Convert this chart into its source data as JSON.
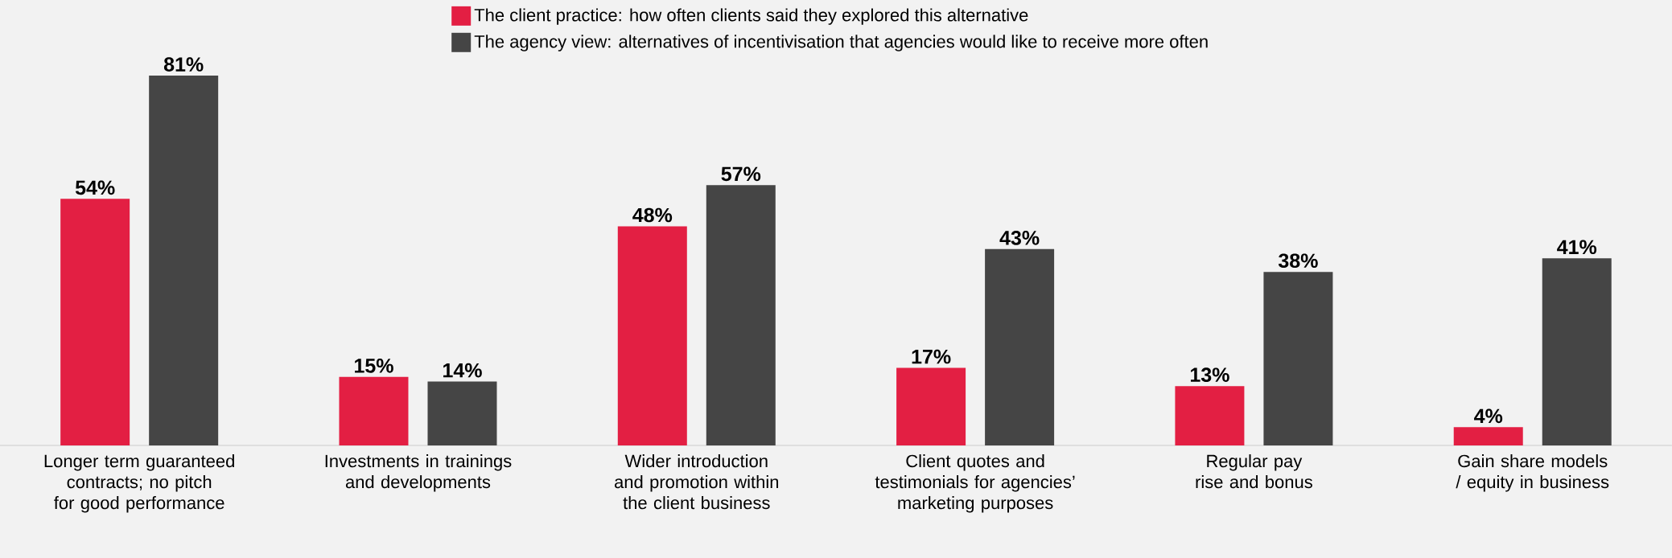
{
  "chart_data": {
    "type": "bar",
    "categories": [
      "Longer term guaranteed contracts; no pitch for good performance",
      "Investments in trainings and developments",
      "Wider introduction and promotion within the client business",
      "Client quotes and testimonials for agencies’ marketing purposes",
      "Regular pay rise and bonus",
      "Gain share models / equity in business"
    ],
    "series": [
      {
        "name": "The client practice: how often clients said they explored this alternative",
        "color": "#e31f43",
        "values": [
          54,
          15,
          48,
          17,
          13,
          4
        ],
        "value_labels": [
          "54%",
          "15%",
          "48%",
          "17%",
          "13%",
          "4%"
        ]
      },
      {
        "name": "The agency view: alternatives of incentivisation that agencies would like to receive more often",
        "color": "#454545",
        "values": [
          81,
          14,
          57,
          43,
          38,
          41
        ],
        "value_labels": [
          "81%",
          "14%",
          "57%",
          "43%",
          "38%",
          "41%"
        ]
      }
    ],
    "legend": "top"
  }
}
